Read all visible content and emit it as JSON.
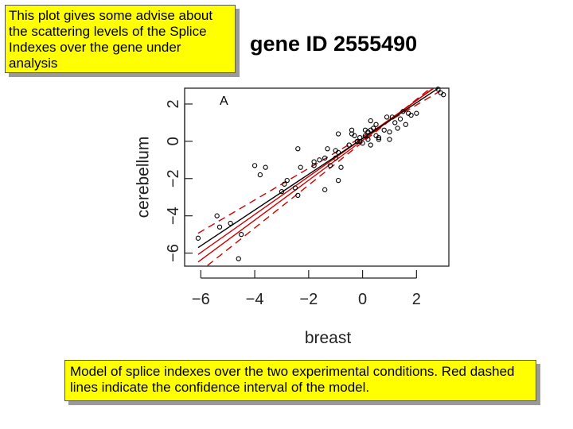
{
  "notes": {
    "top": "This plot gives some advise about the scattering levels of the Splice Indexes over the gene under analysis",
    "bottom": "Model of splice indexes over the two experimental conditions. Red dashed lines indicate the confidence interval of the model."
  },
  "chart_data": {
    "type": "scatter",
    "title": "gene ID 2555490",
    "panel_label": "A",
    "xlabel": "breast",
    "ylabel": "cerebellum",
    "xlim": [
      -6.6,
      3.2
    ],
    "ylim": [
      -6.7,
      2.85
    ],
    "xticks": [
      -6,
      -4,
      -2,
      0,
      2
    ],
    "yticks": [
      -6,
      -4,
      -2,
      0,
      2
    ],
    "xtick_labels": [
      "−6",
      "−4",
      "−2",
      "0",
      "2"
    ],
    "ytick_labels": [
      "−6",
      "−4",
      "−2",
      "0",
      "2"
    ],
    "grid": false,
    "colors": {
      "points": "#000000",
      "fit": "#000000",
      "model": "#cc0000",
      "confidence": "#cc0000"
    },
    "points": [
      [
        -6.1,
        -5.2
      ],
      [
        -5.4,
        -4.0
      ],
      [
        -5.3,
        -4.6
      ],
      [
        -4.9,
        -4.4
      ],
      [
        -4.5,
        -5.0
      ],
      [
        -4.6,
        -6.3
      ],
      [
        -4.0,
        -1.3
      ],
      [
        -3.8,
        -1.8
      ],
      [
        -3.6,
        -1.4
      ],
      [
        -3.0,
        -2.7
      ],
      [
        -2.9,
        -2.3
      ],
      [
        -2.8,
        -2.1
      ],
      [
        -2.5,
        -2.5
      ],
      [
        -2.4,
        -0.4
      ],
      [
        -2.3,
        -1.4
      ],
      [
        -2.4,
        -2.9
      ],
      [
        -1.8,
        -1.3
      ],
      [
        -1.8,
        -1.1
      ],
      [
        -1.6,
        -1.0
      ],
      [
        -1.4,
        -0.9
      ],
      [
        -1.3,
        -0.4
      ],
      [
        -1.4,
        -2.6
      ],
      [
        -1.2,
        -1.3
      ],
      [
        -1.0,
        -0.9
      ],
      [
        -1.0,
        -0.5
      ],
      [
        -0.9,
        -0.6
      ],
      [
        -0.8,
        -1.4
      ],
      [
        -0.9,
        -2.1
      ],
      [
        -0.9,
        0.4
      ],
      [
        -0.5,
        -0.2
      ],
      [
        -0.4,
        0.6
      ],
      [
        -0.4,
        0.4
      ],
      [
        -0.3,
        0.3
      ],
      [
        -0.2,
        0.0
      ],
      [
        -0.1,
        0.0
      ],
      [
        -0.1,
        0.2
      ],
      [
        0.0,
        -0.1
      ],
      [
        0.1,
        0.6
      ],
      [
        0.1,
        0.3
      ],
      [
        0.2,
        0.1
      ],
      [
        0.2,
        0.5
      ],
      [
        0.3,
        0.6
      ],
      [
        0.3,
        -0.2
      ],
      [
        0.3,
        1.1
      ],
      [
        0.4,
        0.7
      ],
      [
        0.5,
        0.3
      ],
      [
        0.5,
        0.9
      ],
      [
        0.6,
        0.2
      ],
      [
        0.6,
        0.1
      ],
      [
        0.8,
        0.6
      ],
      [
        0.9,
        1.3
      ],
      [
        1.0,
        0.5
      ],
      [
        1.0,
        0.1
      ],
      [
        1.1,
        1.3
      ],
      [
        1.2,
        1.0
      ],
      [
        1.3,
        0.7
      ],
      [
        1.4,
        1.2
      ],
      [
        1.5,
        1.6
      ],
      [
        1.6,
        0.9
      ],
      [
        1.7,
        1.5
      ],
      [
        1.8,
        1.4
      ],
      [
        2.0,
        1.5
      ],
      [
        2.8,
        2.8
      ],
      [
        2.9,
        2.6
      ],
      [
        3.0,
        2.5
      ]
    ],
    "fit_line": {
      "slope": 0.96,
      "intercept": 0.15
    },
    "model_lines": [
      {
        "slope": 1.02,
        "intercept": 0.15
      },
      {
        "slope": 1.07,
        "intercept": 0.05
      }
    ],
    "confidence_lines": [
      {
        "slope": 0.85,
        "intercept": 0.25
      },
      {
        "slope": 1.15,
        "intercept": -0.05
      }
    ]
  }
}
